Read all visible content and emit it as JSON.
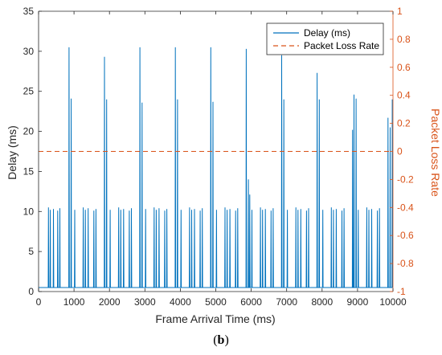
{
  "caption": {
    "open": "(",
    "letter": "b",
    "close": ")"
  },
  "colors": {
    "delay": "#0072BD",
    "loss": "#D95319",
    "axis": "#262626"
  },
  "chart_data": {
    "type": "line",
    "xlabel": "Frame Arrival Time (ms)",
    "ylabel": "Delay (ms)",
    "y2label": "Packet Loss Rate",
    "xlim": [
      0,
      10000
    ],
    "ylim": [
      0,
      35
    ],
    "y2lim": [
      -1,
      1
    ],
    "xticks": [
      "0",
      "1000",
      "2000",
      "3000",
      "4000",
      "5000",
      "6000",
      "7000",
      "8000",
      "9000",
      "10000"
    ],
    "yticks": [
      "0",
      "5",
      "10",
      "15",
      "20",
      "25",
      "30",
      "35"
    ],
    "y2ticks": [
      "-1",
      "-0.8",
      "-0.6",
      "-0.4",
      "-0.2",
      "0",
      "0.2",
      "0.4",
      "0.6",
      "0.8",
      "1"
    ],
    "grid": false,
    "legend": "top-right",
    "baseline": 0.5,
    "series": [
      {
        "name": "Delay (ms)",
        "axis": "left",
        "style": "solid",
        "spikes": [
          {
            "x": 280,
            "y": 10.5
          },
          {
            "x": 330,
            "y": 10.2
          },
          {
            "x": 420,
            "y": 10.3
          },
          {
            "x": 540,
            "y": 10.1
          },
          {
            "x": 600,
            "y": 10.4
          },
          {
            "x": 860,
            "y": 30.5
          },
          {
            "x": 920,
            "y": 24.1
          },
          {
            "x": 1020,
            "y": 10.2
          },
          {
            "x": 1260,
            "y": 10.5
          },
          {
            "x": 1320,
            "y": 10.2
          },
          {
            "x": 1400,
            "y": 10.4
          },
          {
            "x": 1560,
            "y": 10.1
          },
          {
            "x": 1620,
            "y": 10.3
          },
          {
            "x": 1860,
            "y": 29.3
          },
          {
            "x": 1920,
            "y": 24.0
          },
          {
            "x": 2020,
            "y": 10.2
          },
          {
            "x": 2260,
            "y": 10.5
          },
          {
            "x": 2320,
            "y": 10.2
          },
          {
            "x": 2400,
            "y": 10.3
          },
          {
            "x": 2560,
            "y": 10.1
          },
          {
            "x": 2620,
            "y": 10.4
          },
          {
            "x": 2860,
            "y": 30.5
          },
          {
            "x": 2920,
            "y": 23.6
          },
          {
            "x": 3020,
            "y": 10.3
          },
          {
            "x": 3260,
            "y": 10.5
          },
          {
            "x": 3320,
            "y": 10.2
          },
          {
            "x": 3400,
            "y": 10.4
          },
          {
            "x": 3560,
            "y": 10.1
          },
          {
            "x": 3620,
            "y": 10.3
          },
          {
            "x": 3860,
            "y": 30.5
          },
          {
            "x": 3920,
            "y": 24.0
          },
          {
            "x": 4020,
            "y": 10.2
          },
          {
            "x": 4260,
            "y": 10.5
          },
          {
            "x": 4320,
            "y": 10.2
          },
          {
            "x": 4400,
            "y": 10.3
          },
          {
            "x": 4560,
            "y": 10.1
          },
          {
            "x": 4620,
            "y": 10.4
          },
          {
            "x": 4860,
            "y": 30.5
          },
          {
            "x": 4920,
            "y": 23.7
          },
          {
            "x": 5020,
            "y": 10.2
          },
          {
            "x": 5260,
            "y": 10.5
          },
          {
            "x": 5320,
            "y": 10.2
          },
          {
            "x": 5400,
            "y": 10.3
          },
          {
            "x": 5560,
            "y": 10.1
          },
          {
            "x": 5620,
            "y": 10.4
          },
          {
            "x": 5860,
            "y": 30.3
          },
          {
            "x": 5920,
            "y": 14.0
          },
          {
            "x": 5960,
            "y": 12.1
          },
          {
            "x": 6020,
            "y": 10.2
          },
          {
            "x": 6260,
            "y": 10.5
          },
          {
            "x": 6320,
            "y": 10.2
          },
          {
            "x": 6400,
            "y": 10.3
          },
          {
            "x": 6560,
            "y": 10.1
          },
          {
            "x": 6620,
            "y": 10.4
          },
          {
            "x": 6860,
            "y": 29.5
          },
          {
            "x": 6920,
            "y": 24.0
          },
          {
            "x": 7020,
            "y": 10.2
          },
          {
            "x": 7260,
            "y": 10.5
          },
          {
            "x": 7320,
            "y": 10.2
          },
          {
            "x": 7400,
            "y": 10.3
          },
          {
            "x": 7560,
            "y": 10.1
          },
          {
            "x": 7620,
            "y": 10.4
          },
          {
            "x": 7860,
            "y": 27.3
          },
          {
            "x": 7920,
            "y": 24.0
          },
          {
            "x": 8020,
            "y": 10.2
          },
          {
            "x": 8260,
            "y": 10.5
          },
          {
            "x": 8320,
            "y": 10.2
          },
          {
            "x": 8400,
            "y": 10.3
          },
          {
            "x": 8560,
            "y": 10.1
          },
          {
            "x": 8620,
            "y": 10.4
          },
          {
            "x": 8860,
            "y": 20.2
          },
          {
            "x": 8900,
            "y": 24.6
          },
          {
            "x": 8960,
            "y": 24.1
          },
          {
            "x": 9020,
            "y": 10.2
          },
          {
            "x": 9260,
            "y": 10.5
          },
          {
            "x": 9320,
            "y": 10.2
          },
          {
            "x": 9400,
            "y": 10.3
          },
          {
            "x": 9560,
            "y": 10.1
          },
          {
            "x": 9620,
            "y": 10.4
          },
          {
            "x": 9860,
            "y": 21.7
          },
          {
            "x": 9920,
            "y": 20.5
          },
          {
            "x": 9980,
            "y": 24.0
          }
        ]
      },
      {
        "name": "Packet Loss Rate",
        "axis": "right",
        "style": "dashed",
        "x": [
          0,
          10000
        ],
        "values": [
          0,
          0
        ]
      }
    ]
  }
}
